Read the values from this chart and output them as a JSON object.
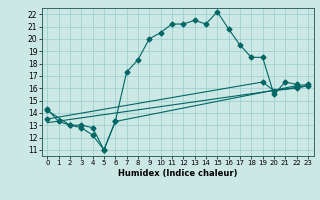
{
  "title": "",
  "xlabel": "Humidex (Indice chaleur)",
  "background_color": "#cce8e4",
  "grid_color": "#99cccc",
  "line_color": "#006666",
  "xlim": [
    -0.5,
    23.5
  ],
  "ylim": [
    10.5,
    22.5
  ],
  "xticks": [
    0,
    1,
    2,
    3,
    4,
    5,
    6,
    7,
    8,
    9,
    10,
    11,
    12,
    13,
    14,
    15,
    16,
    17,
    18,
    19,
    20,
    21,
    22,
    23
  ],
  "yticks": [
    11,
    12,
    13,
    14,
    15,
    16,
    17,
    18,
    19,
    20,
    21,
    22
  ],
  "line1_x": [
    0,
    1,
    2,
    3,
    4,
    5,
    6,
    7,
    8,
    9,
    10,
    11,
    12,
    13,
    14,
    15,
    16,
    17,
    18,
    19,
    20,
    21,
    22
  ],
  "line1_y": [
    14.3,
    13.3,
    13.0,
    12.8,
    12.2,
    11.0,
    13.3,
    17.3,
    18.3,
    20.0,
    20.5,
    21.2,
    21.2,
    21.5,
    21.2,
    22.2,
    20.8,
    19.5,
    18.5,
    18.5,
    15.5,
    16.5,
    16.3
  ],
  "line2_x": [
    0,
    2,
    3,
    4,
    5,
    6,
    22,
    23
  ],
  "line2_y": [
    14.2,
    13.0,
    13.0,
    12.8,
    11.0,
    13.3,
    16.2,
    16.3
  ],
  "line3_x": [
    0,
    23
  ],
  "line3_y": [
    13.2,
    16.2
  ],
  "line4_x": [
    0,
    19,
    20,
    22,
    23
  ],
  "line4_y": [
    13.5,
    16.5,
    15.8,
    16.0,
    16.2
  ]
}
